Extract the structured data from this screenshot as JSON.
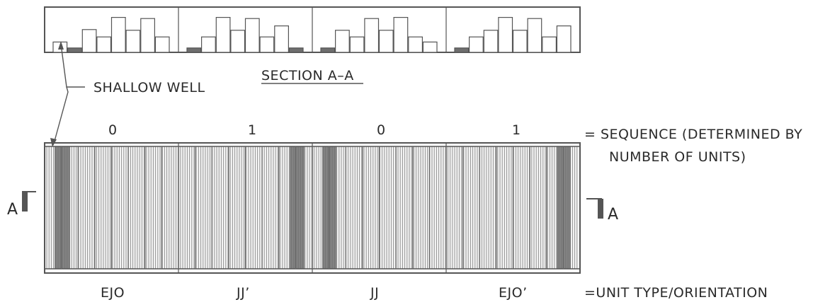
{
  "labels": {
    "shallow_well": "SHALLOW WELL",
    "section_title": "SECTION A–A",
    "sequence_legend": "= SEQUENCE (DETERMINED BY",
    "sequence_legend_2": "NUMBER OF UNITS)",
    "unit_legend": "=UNIT TYPE/ORIENTATION",
    "section_marker_left": "A",
    "section_marker_right": "A"
  },
  "sequence": [
    "0",
    "1",
    "0",
    "1"
  ],
  "unit_types": [
    "EJO",
    "JJ’",
    "JJ",
    "EJO’"
  ],
  "section_profile": [
    [
      0.28,
      0.12,
      0.62,
      0.42,
      0.95,
      0.6,
      0.92,
      0.42
    ],
    [
      0.12,
      0.42,
      0.95,
      0.6,
      0.92,
      0.42,
      0.72,
      0.12
    ],
    [
      0.12,
      0.6,
      0.42,
      0.92,
      0.6,
      0.95,
      0.42,
      0.28
    ],
    [
      0.12,
      0.42,
      0.6,
      0.95,
      0.6,
      0.92,
      0.42,
      0.72
    ]
  ],
  "colors": {
    "line": "#555555",
    "stripe": "#8a8a8a",
    "dark_band": "#6e6e6e",
    "text": "#2a2a2a"
  }
}
